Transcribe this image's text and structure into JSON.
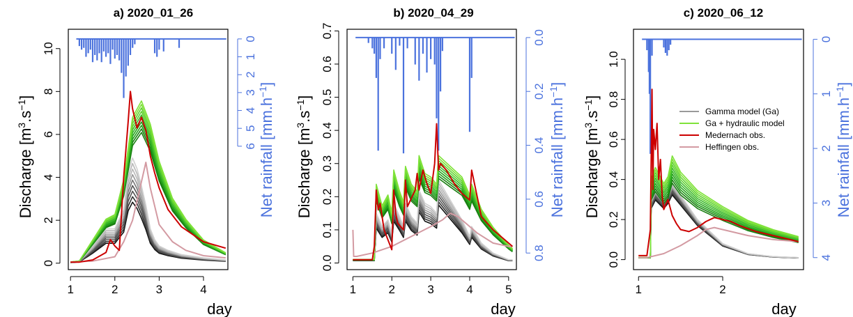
{
  "figure": {
    "colors": {
      "gamma": [
        "#111111",
        "#333333",
        "#555555",
        "#777777",
        "#999999",
        "#b8b8b8",
        "#d0d0d0"
      ],
      "hydraulic": [
        "#1a7f12",
        "#23a11a",
        "#3cb82a",
        "#5fd130",
        "#7fe23a"
      ],
      "medernach": "#cc0000",
      "heffingen": "#d39aa2",
      "rainfall": "#4b72dd"
    }
  },
  "legend": {
    "gamma": "Gamma model (Ga)",
    "hydraulic": "Ga + hydraulic model",
    "medernach": "Medernach obs.",
    "heffingen": "Heffingen obs."
  },
  "chart_data": [
    {
      "type": "line",
      "title": "a) 2020_01_26",
      "xlabel": "day",
      "ylabel_left": "Discharge [m3.s-1]",
      "ylabel_right": "Net rainfall [mm.h-1]",
      "xlim": [
        0.95,
        4.55
      ],
      "ylim": [
        -0.3,
        10.9
      ],
      "y2lim_reversed": [
        0,
        6
      ],
      "xticks": [
        1,
        2,
        3,
        4
      ],
      "yticks": [
        0,
        2,
        4,
        6,
        8,
        10
      ],
      "y2ticks": [
        0,
        1,
        2,
        3,
        4,
        5,
        6
      ],
      "rainfall_baseline_y": 10.45,
      "rainfall_scale": 0.8333,
      "rainfall": [
        [
          1.2,
          0.4
        ],
        [
          1.25,
          0.6
        ],
        [
          1.3,
          0.5
        ],
        [
          1.35,
          1.0
        ],
        [
          1.4,
          0.8
        ],
        [
          1.45,
          0.6
        ],
        [
          1.5,
          1.3
        ],
        [
          1.55,
          0.9
        ],
        [
          1.6,
          1.2
        ],
        [
          1.65,
          0.8
        ],
        [
          1.7,
          1.3
        ],
        [
          1.75,
          0.7
        ],
        [
          1.8,
          1.0
        ],
        [
          1.85,
          0.8
        ],
        [
          1.9,
          1.4
        ],
        [
          1.95,
          0.6
        ],
        [
          2.0,
          1.1
        ],
        [
          2.05,
          0.9
        ],
        [
          2.1,
          1.2
        ],
        [
          2.15,
          1.9
        ],
        [
          2.2,
          3.3
        ],
        [
          2.25,
          2.1
        ],
        [
          2.3,
          1.5
        ],
        [
          2.35,
          0.9
        ],
        [
          2.4,
          0.5
        ],
        [
          2.45,
          0.3
        ],
        [
          2.9,
          0.8
        ],
        [
          2.95,
          1.0
        ],
        [
          3.0,
          0.6
        ],
        [
          3.1,
          0.7
        ],
        [
          3.45,
          0.5
        ]
      ],
      "series": [
        {
          "name": "Gamma model (Ga)",
          "scale_min": 0.58,
          "scale_max": 1.0,
          "x": [
            1.0,
            1.2,
            1.5,
            1.8,
            2.0,
            2.2,
            2.3,
            2.4,
            2.5,
            2.6,
            2.7,
            2.8,
            2.9,
            3.0,
            3.2,
            3.5,
            4.0,
            4.5
          ],
          "values": [
            0.05,
            0.1,
            0.8,
            1.6,
            1.6,
            2.5,
            4.2,
            4.9,
            4.4,
            3.6,
            2.7,
            1.6,
            1.1,
            0.8,
            0.6,
            0.4,
            0.25,
            0.15
          ]
        },
        {
          "name": "Ga + hydraulic model",
          "scale_min": 0.87,
          "scale_max": 1.08,
          "x": [
            1.0,
            1.2,
            1.5,
            1.8,
            2.0,
            2.2,
            2.4,
            2.6,
            2.8,
            3.0,
            3.3,
            3.6,
            4.0,
            4.5
          ],
          "values": [
            0.05,
            0.1,
            1.0,
            1.9,
            2.1,
            3.6,
            6.3,
            7.0,
            6.0,
            4.4,
            2.8,
            1.9,
            1.0,
            0.45
          ]
        },
        {
          "name": "Medernach obs.",
          "x": [
            1.0,
            1.2,
            1.5,
            1.8,
            1.9,
            2.0,
            2.1,
            2.2,
            2.3,
            2.35,
            2.4,
            2.5,
            2.6,
            2.7,
            2.8,
            2.9,
            3.0,
            3.2,
            3.5,
            4.0,
            4.5
          ],
          "values": [
            0.05,
            0.05,
            0.15,
            0.5,
            1.1,
            0.8,
            0.6,
            4.0,
            6.6,
            8.0,
            7.2,
            6.3,
            6.8,
            6.2,
            5.0,
            4.2,
            3.5,
            2.5,
            1.7,
            1.0,
            0.7
          ]
        },
        {
          "name": "Heffingen obs.",
          "x": [
            1.0,
            1.5,
            2.0,
            2.2,
            2.4,
            2.6,
            2.7,
            2.8,
            3.0,
            3.3,
            3.6,
            4.0,
            4.5
          ],
          "values": [
            0.05,
            0.1,
            0.3,
            1.0,
            2.0,
            3.8,
            4.7,
            3.5,
            1.8,
            1.0,
            0.6,
            0.35,
            0.25
          ]
        }
      ]
    },
    {
      "type": "line",
      "title": "b) 2020_04_29",
      "xlabel": "day",
      "ylabel_left": "Discharge [m3.s-1]",
      "ylabel_right": "Net rainfall [mm.h-1]",
      "xlim": [
        0.85,
        5.2
      ],
      "ylim": [
        -0.02,
        0.705
      ],
      "y2lim_reversed": [
        0,
        0.8
      ],
      "xticks": [
        1,
        2,
        3,
        4,
        5
      ],
      "yticks": [
        0.0,
        0.1,
        0.2,
        0.3,
        0.4,
        0.5,
        0.6,
        0.7
      ],
      "y2ticks": [
        0.0,
        0.2,
        0.4,
        0.6,
        0.8
      ],
      "rainfall_baseline_y": 0.68,
      "rainfall_scale": 0.8125,
      "rainfall": [
        [
          1.4,
          0.02
        ],
        [
          1.5,
          0.04
        ],
        [
          1.55,
          0.06
        ],
        [
          1.6,
          0.15
        ],
        [
          1.65,
          0.42
        ],
        [
          1.7,
          0.08
        ],
        [
          1.8,
          0.04
        ],
        [
          2.0,
          0.06
        ],
        [
          2.1,
          0.12
        ],
        [
          2.2,
          0.03
        ],
        [
          2.3,
          0.43
        ],
        [
          2.4,
          0.04
        ],
        [
          2.6,
          0.1
        ],
        [
          2.7,
          0.16
        ],
        [
          2.8,
          0.06
        ],
        [
          2.9,
          0.13
        ],
        [
          3.0,
          0.08
        ],
        [
          3.1,
          0.1
        ],
        [
          3.15,
          0.3
        ],
        [
          3.2,
          0.42
        ],
        [
          3.25,
          0.2
        ],
        [
          3.3,
          0.05
        ],
        [
          4.0,
          0.35
        ],
        [
          4.05,
          0.15
        ]
      ],
      "series": [
        {
          "name": "Gamma model (Ga)",
          "scale_min": 0.7,
          "scale_max": 1.0,
          "x": [
            1.0,
            1.55,
            1.6,
            1.75,
            1.9,
            2.0,
            2.05,
            2.2,
            2.3,
            2.35,
            2.5,
            2.65,
            2.7,
            2.85,
            3.0,
            3.15,
            3.2,
            3.5,
            3.8,
            4.0,
            4.05,
            4.3,
            4.6,
            5.0,
            5.1
          ],
          "values": [
            0.01,
            0.01,
            0.15,
            0.11,
            0.13,
            0.09,
            0.18,
            0.14,
            0.11,
            0.18,
            0.14,
            0.12,
            0.22,
            0.18,
            0.17,
            0.15,
            0.25,
            0.19,
            0.13,
            0.08,
            0.11,
            0.06,
            0.03,
            0.01,
            0.01
          ]
        },
        {
          "name": "Ga + hydraulic model",
          "scale_min": 0.85,
          "scale_max": 1.08,
          "x": [
            1.0,
            1.55,
            1.6,
            1.75,
            1.9,
            2.0,
            2.05,
            2.2,
            2.3,
            2.35,
            2.5,
            2.65,
            2.7,
            2.85,
            3.0,
            3.15,
            3.2,
            3.5,
            3.8,
            4.0,
            4.05,
            4.3,
            4.6,
            5.0,
            5.1
          ],
          "values": [
            0.01,
            0.01,
            0.22,
            0.16,
            0.19,
            0.14,
            0.26,
            0.2,
            0.17,
            0.27,
            0.22,
            0.2,
            0.3,
            0.25,
            0.24,
            0.22,
            0.3,
            0.27,
            0.24,
            0.19,
            0.22,
            0.15,
            0.1,
            0.05,
            0.04
          ]
        },
        {
          "name": "Medernach obs.",
          "x": [
            1.0,
            1.5,
            1.55,
            1.6,
            1.65,
            1.7,
            1.8,
            2.0,
            2.05,
            2.1,
            2.15,
            2.3,
            2.35,
            2.4,
            2.6,
            2.65,
            2.7,
            2.8,
            2.9,
            3.0,
            3.1,
            3.15,
            3.2,
            3.25,
            3.4,
            3.6,
            3.8,
            4.0,
            4.05,
            4.3,
            4.6,
            5.0,
            5.1
          ],
          "values": [
            0.01,
            0.01,
            0.05,
            0.22,
            0.16,
            0.18,
            0.1,
            0.04,
            0.22,
            0.15,
            0.12,
            0.1,
            0.25,
            0.17,
            0.22,
            0.27,
            0.22,
            0.28,
            0.24,
            0.21,
            0.3,
            0.42,
            0.28,
            0.3,
            0.28,
            0.24,
            0.21,
            0.19,
            0.28,
            0.14,
            0.1,
            0.06,
            0.05
          ]
        },
        {
          "name": "Heffingen obs.",
          "x": [
            1.0,
            1.02,
            1.1,
            1.5,
            2.0,
            2.5,
            3.0,
            3.3,
            3.5,
            3.7,
            3.9,
            4.2,
            4.6,
            5.0,
            5.1
          ],
          "values": [
            0.1,
            0.02,
            0.02,
            0.03,
            0.05,
            0.08,
            0.11,
            0.13,
            0.15,
            0.14,
            0.12,
            0.09,
            0.06,
            0.05,
            0.05
          ]
        }
      ]
    },
    {
      "type": "line",
      "title": "c) 2020_06_12",
      "xlabel": "day",
      "ylabel_left": "Discharge [m3.s-1]",
      "ylabel_right": "Net rainfall [mm.h-1]",
      "xlim": [
        0.94,
        2.96
      ],
      "ylim": [
        -0.05,
        1.15
      ],
      "y2lim_reversed": [
        0,
        4
      ],
      "xticks": [
        1,
        2
      ],
      "yticks": [
        0.0,
        0.2,
        0.4,
        0.6,
        0.8,
        1.0
      ],
      "y2ticks": [
        0,
        1,
        2,
        3,
        4
      ],
      "rainfall_baseline_y": 1.1,
      "rainfall_scale": 0.2725,
      "rainfall": [
        [
          1.1,
          0.2
        ],
        [
          1.12,
          0.6
        ],
        [
          1.13,
          1.0
        ],
        [
          1.14,
          2.1
        ],
        [
          1.16,
          0.3
        ],
        [
          1.3,
          0.15
        ],
        [
          1.32,
          0.25
        ],
        [
          1.34,
          0.3
        ],
        [
          1.36,
          0.2
        ],
        [
          1.38,
          0.1
        ]
      ],
      "series": [
        {
          "name": "Gamma model (Ga)",
          "scale_min": 0.85,
          "scale_max": 1.0,
          "x": [
            1.0,
            1.14,
            1.15,
            1.2,
            1.3,
            1.35,
            1.4,
            1.5,
            1.7,
            2.0,
            2.3,
            2.6,
            2.9
          ],
          "values": [
            0.01,
            0.01,
            0.3,
            0.35,
            0.3,
            0.33,
            0.38,
            0.32,
            0.2,
            0.08,
            0.03,
            0.015,
            0.01
          ]
        },
        {
          "name": "Ga + hydraulic model",
          "scale_min": 0.85,
          "scale_max": 1.15,
          "x": [
            1.0,
            1.14,
            1.15,
            1.2,
            1.3,
            1.35,
            1.4,
            1.5,
            1.7,
            2.0,
            2.3,
            2.6,
            2.9
          ],
          "values": [
            0.01,
            0.01,
            0.35,
            0.4,
            0.33,
            0.36,
            0.45,
            0.38,
            0.3,
            0.23,
            0.17,
            0.13,
            0.1
          ]
        },
        {
          "name": "Medernach obs.",
          "x": [
            1.0,
            1.1,
            1.14,
            1.16,
            1.17,
            1.18,
            1.2,
            1.22,
            1.24,
            1.26,
            1.28,
            1.3,
            1.35,
            1.4,
            1.45,
            1.5,
            1.6,
            1.7,
            1.8,
            1.9,
            2.0,
            2.1,
            2.2,
            2.4,
            2.6,
            2.8,
            2.9
          ],
          "values": [
            0.02,
            0.02,
            0.15,
            0.85,
            0.35,
            0.65,
            0.55,
            0.68,
            0.4,
            0.5,
            0.32,
            0.25,
            0.3,
            0.22,
            0.18,
            0.15,
            0.14,
            0.16,
            0.19,
            0.21,
            0.2,
            0.19,
            0.17,
            0.14,
            0.12,
            0.1,
            0.09
          ]
        },
        {
          "name": "Heffingen obs.",
          "x": [
            1.0,
            1.1,
            1.3,
            1.5,
            1.7,
            1.8,
            1.9,
            2.0,
            2.1,
            2.3,
            2.6,
            2.9
          ],
          "values": [
            0.01,
            0.01,
            0.03,
            0.07,
            0.12,
            0.15,
            0.16,
            0.15,
            0.14,
            0.12,
            0.1,
            0.09
          ]
        }
      ]
    }
  ]
}
